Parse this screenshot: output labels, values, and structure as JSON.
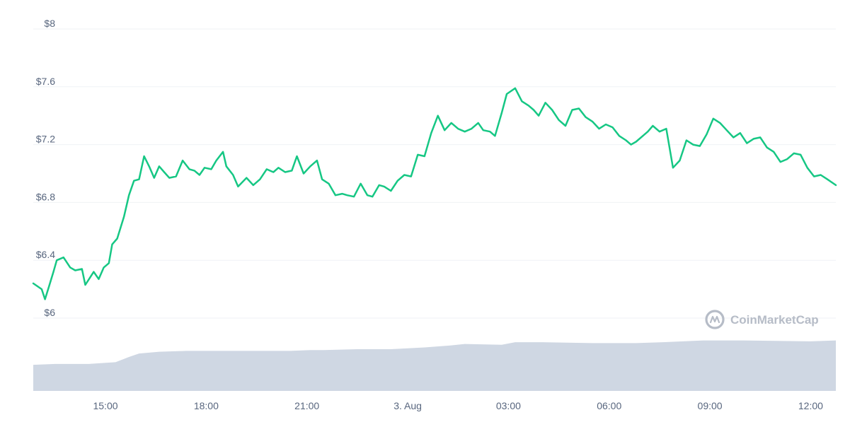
{
  "chart_data": {
    "type": "line",
    "watermark": "CoinMarketCap",
    "colors": {
      "price_line": "#16c784",
      "volume_bars": "#cfd7e3",
      "grid": "#eff2f5",
      "label": "#58667e"
    },
    "y_axis": {
      "ticks": [
        "$6",
        "$6.4",
        "$6.8",
        "$7.2",
        "$7.6",
        "$8"
      ],
      "tick_values": [
        6,
        6.4,
        6.8,
        7.2,
        7.6,
        8
      ],
      "range": [
        6,
        8
      ],
      "prefix": "$"
    },
    "x_axis": {
      "ticks": [
        "15:00",
        "18:00",
        "21:00",
        "3. Aug",
        "03:00",
        "06:00",
        "09:00",
        "12:00"
      ],
      "tick_hours": [
        15,
        18,
        21,
        24,
        27,
        30,
        33,
        36
      ],
      "range_hours": [
        12.85,
        36.75
      ]
    },
    "price_series": {
      "x_hours": [
        12.85,
        13.1,
        13.2,
        13.32,
        13.45,
        13.55,
        13.75,
        13.95,
        14.1,
        14.3,
        14.4,
        14.65,
        14.8,
        14.95,
        15.1,
        15.2,
        15.35,
        15.55,
        15.7,
        15.85,
        16.0,
        16.15,
        16.3,
        16.45,
        16.6,
        16.75,
        16.9,
        17.1,
        17.3,
        17.5,
        17.65,
        17.8,
        17.95,
        18.15,
        18.3,
        18.5,
        18.6,
        18.8,
        18.95,
        19.2,
        19.4,
        19.6,
        19.8,
        20.0,
        20.15,
        20.35,
        20.55,
        20.7,
        20.9,
        21.1,
        21.3,
        21.45,
        21.65,
        21.85,
        22.05,
        22.2,
        22.4,
        22.6,
        22.8,
        22.95,
        23.15,
        23.3,
        23.5,
        23.7,
        23.9,
        24.1,
        24.3,
        24.5,
        24.7,
        24.9,
        25.1,
        25.3,
        25.5,
        25.7,
        25.9,
        26.1,
        26.25,
        26.45,
        26.6,
        26.8,
        26.95,
        27.2,
        27.4,
        27.6,
        27.75,
        27.9,
        28.1,
        28.3,
        28.5,
        28.7,
        28.9,
        29.1,
        29.3,
        29.5,
        29.7,
        29.9,
        30.1,
        30.3,
        30.5,
        30.65,
        30.8,
        31.0,
        31.15,
        31.3,
        31.5,
        31.7,
        31.9,
        32.1,
        32.3,
        32.5,
        32.7,
        32.9,
        33.1,
        33.3,
        33.5,
        33.7,
        33.9,
        34.1,
        34.3,
        34.5,
        34.7,
        34.9,
        35.1,
        35.3,
        35.5,
        35.7,
        35.9,
        36.1,
        36.3,
        36.5,
        36.75
      ],
      "prices": [
        6.24,
        6.2,
        6.13,
        6.22,
        6.32,
        6.4,
        6.42,
        6.35,
        6.33,
        6.34,
        6.23,
        6.32,
        6.27,
        6.35,
        6.38,
        6.51,
        6.55,
        6.7,
        6.85,
        6.95,
        6.96,
        7.12,
        7.05,
        6.97,
        7.05,
        7.01,
        6.97,
        6.98,
        7.09,
        7.03,
        7.02,
        6.99,
        7.04,
        7.03,
        7.09,
        7.15,
        7.05,
        6.99,
        6.91,
        6.97,
        6.92,
        6.96,
        7.03,
        7.01,
        7.04,
        7.01,
        7.02,
        7.12,
        7.0,
        7.05,
        7.09,
        6.96,
        6.93,
        6.85,
        6.86,
        6.85,
        6.84,
        6.93,
        6.85,
        6.84,
        6.92,
        6.91,
        6.88,
        6.95,
        6.99,
        6.98,
        7.13,
        7.12,
        7.28,
        7.4,
        7.3,
        7.35,
        7.31,
        7.29,
        7.31,
        7.35,
        7.3,
        7.29,
        7.26,
        7.42,
        7.55,
        7.59,
        7.5,
        7.47,
        7.44,
        7.4,
        7.49,
        7.44,
        7.37,
        7.33,
        7.44,
        7.45,
        7.39,
        7.36,
        7.31,
        7.34,
        7.32,
        7.26,
        7.23,
        7.2,
        7.22,
        7.26,
        7.29,
        7.33,
        7.29,
        7.31,
        7.04,
        7.09,
        7.23,
        7.2,
        7.19,
        7.27,
        7.38,
        7.35,
        7.3,
        7.25,
        7.28,
        7.21,
        7.24,
        7.25,
        7.18,
        7.15,
        7.08,
        7.1,
        7.14,
        7.13,
        7.04,
        6.98,
        6.99,
        6.96,
        6.92,
        6.96,
        7.05
      ]
    },
    "volume_series": {
      "x_hours": [
        12.85,
        13.5,
        14.5,
        15.3,
        15.7,
        16.0,
        16.6,
        17.4,
        18.0,
        19.0,
        20.5,
        21.1,
        21.5,
        22.5,
        23.5,
        24.0,
        24.5,
        25.2,
        25.7,
        26.8,
        27.2,
        28.0,
        29.5,
        30.8,
        31.6,
        32.2,
        32.8,
        34.0,
        36.0,
        36.75
      ],
      "levels": [
        0.3,
        0.31,
        0.31,
        0.33,
        0.39,
        0.43,
        0.45,
        0.46,
        0.46,
        0.46,
        0.46,
        0.47,
        0.47,
        0.48,
        0.48,
        0.49,
        0.5,
        0.52,
        0.54,
        0.53,
        0.56,
        0.56,
        0.55,
        0.55,
        0.56,
        0.57,
        0.58,
        0.58,
        0.57,
        0.58
      ]
    }
  }
}
